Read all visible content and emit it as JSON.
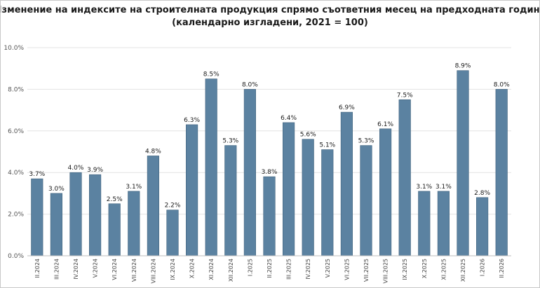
{
  "chart_data": {
    "type": "bar",
    "title_lines": [
      "Изменение на индексите на строителната продукция спрямо съответния месец на предходната година",
      "(календарно изгладени, 2021 = 100)"
    ],
    "categories": [
      "II.2024",
      "III.2024",
      "IV.2024",
      "V.2024",
      "VI.2024",
      "VII.2024",
      "VIII.2024",
      "IX.2024",
      "X.2024",
      "XI.2024",
      "XII.2024",
      "I.2025",
      "II.2025",
      "III.2025",
      "IV.2025",
      "V.2025",
      "VI.2025",
      "VII.2025",
      "VIII.2025",
      "IX.2025",
      "X.2025",
      "XI.2025",
      "XII.2025",
      "I.2026",
      "II.2026"
    ],
    "values": [
      3.7,
      3.0,
      4.0,
      3.9,
      2.5,
      3.1,
      4.8,
      2.2,
      6.3,
      8.5,
      5.3,
      8.0,
      3.8,
      6.4,
      5.6,
      5.1,
      6.9,
      5.3,
      6.1,
      7.5,
      3.1,
      3.1,
      8.9,
      2.8,
      8.0
    ],
    "data_labels": [
      "3.7%",
      "3.0%",
      "4.0%",
      "3.9%",
      "2.5%",
      "3.1%",
      "4.8%",
      "2.2%",
      "6.3%",
      "8.5%",
      "5.3%",
      "8.0%",
      "3.8%",
      "6.4%",
      "5.6%",
      "5.1%",
      "6.9%",
      "5.3%",
      "6.1%",
      "7.5%",
      "3.1%",
      "3.1%",
      "8.9%",
      "2.8%",
      "8.0%"
    ],
    "ylim": [
      0,
      10
    ],
    "yticks": [
      0,
      2,
      4,
      6,
      8,
      10
    ],
    "ytick_labels": [
      "0.0%",
      "2.0%",
      "4.0%",
      "6.0%",
      "8.0%",
      "10.0%"
    ],
    "grid": true,
    "bar_color": "#5b82a1",
    "bar_edge_color": "#41637d",
    "grid_color": "#e3e3e3",
    "axis_color": "#bdbdbd"
  }
}
